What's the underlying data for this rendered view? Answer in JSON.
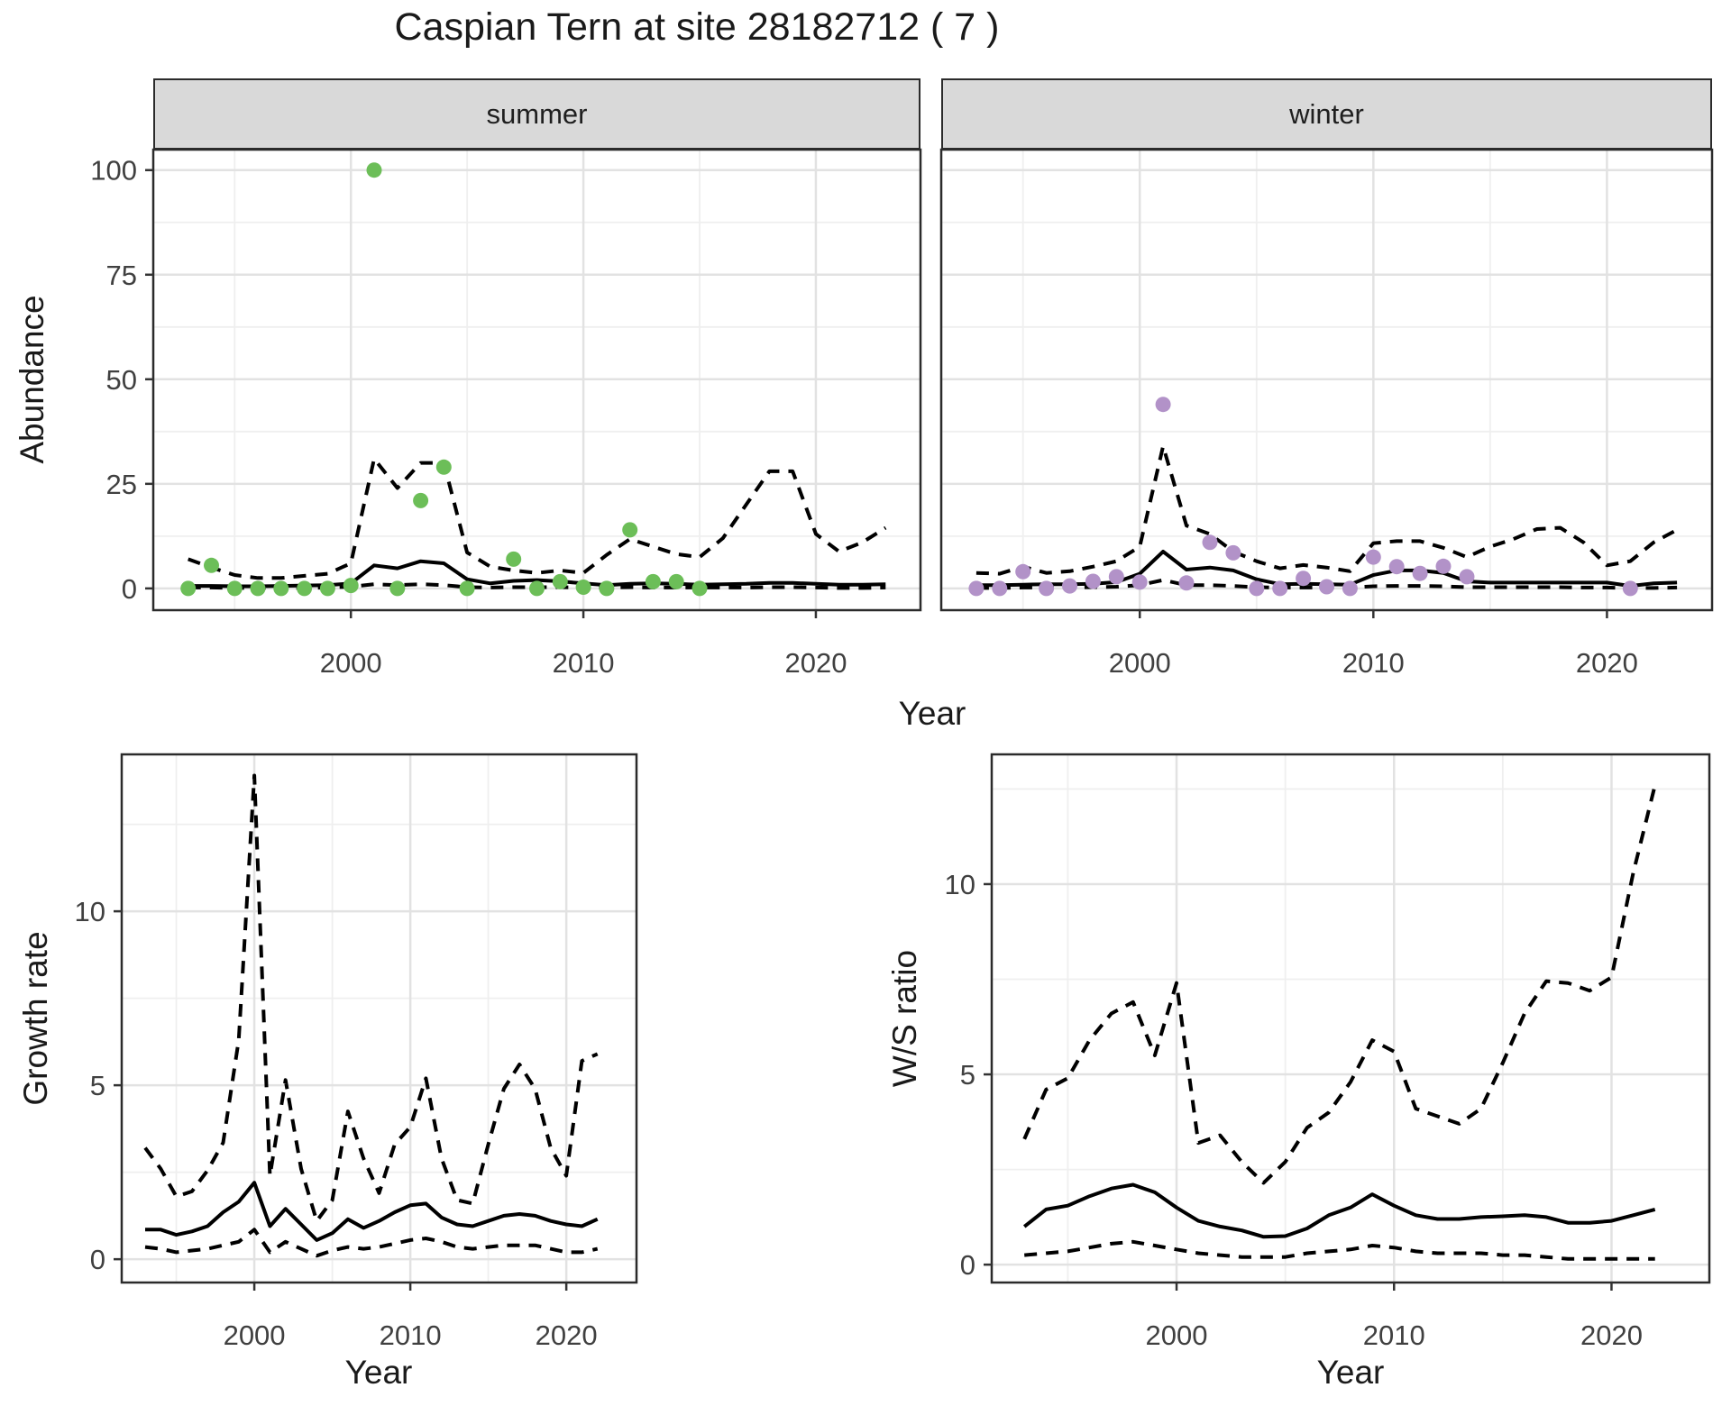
{
  "title": "Caspian Tern at site 28182712 ( 7 )",
  "colors": {
    "summer_point": "#6CBE58",
    "winter_point": "#B292C8",
    "line": "#000000",
    "strip_bg": "#D9D9D9",
    "panel_border": "#2B2B2B",
    "grid_major": "#E2E2E2",
    "grid_minor": "#EFEFEF",
    "axis_text": "#404040"
  },
  "chart_data": [
    {
      "type": "line",
      "panel": "abundance-summer",
      "facet_label": "summer",
      "xlabel": "Year",
      "ylabel": "Abundance",
      "x_ticks": [
        2000,
        2010,
        2020
      ],
      "x_minor_ticks": [
        1995,
        2005,
        2015
      ],
      "y_ticks": [
        0,
        25,
        50,
        75,
        100
      ],
      "y_minor_ticks": [
        12.5,
        37.5,
        62.5,
        87.5
      ],
      "x_domain": [
        1991.5,
        2024.5
      ],
      "y_domain": [
        -5.2,
        104.9
      ],
      "years": [
        1993,
        1994,
        1995,
        1996,
        1997,
        1998,
        1999,
        2000,
        2001,
        2002,
        2003,
        2004,
        2005,
        2006,
        2007,
        2008,
        2009,
        2010,
        2011,
        2012,
        2013,
        2014,
        2015,
        2016,
        2017,
        2018,
        2019,
        2020,
        2021,
        2022,
        2023
      ],
      "series": [
        {
          "name": "median",
          "style": "solid",
          "values": [
            0.6,
            0.6,
            0.5,
            0.5,
            0.6,
            0.7,
            0.8,
            1.2,
            5.5,
            4.8,
            6.5,
            6.0,
            2.2,
            1.2,
            1.8,
            2.0,
            1.7,
            1.2,
            0.8,
            1.1,
            1.2,
            1.1,
            0.9,
            1.0,
            1.1,
            1.3,
            1.3,
            1.1,
            0.9,
            0.9,
            1.0
          ]
        },
        {
          "name": "upper_ci",
          "style": "dashed",
          "values": [
            7,
            5,
            3.2,
            2.5,
            2.5,
            3,
            3.5,
            6,
            31,
            24,
            30,
            30,
            8.6,
            5.2,
            4.3,
            3.7,
            4.3,
            3.7,
            8,
            11.8,
            10,
            8.2,
            7.5,
            12,
            20,
            28,
            28,
            13,
            8.8,
            11,
            14.5
          ]
        },
        {
          "name": "lower_ci",
          "style": "dashed",
          "values": [
            0.2,
            0.2,
            0.1,
            0.1,
            0.1,
            0.1,
            0.2,
            0.4,
            1.0,
            0.8,
            1.0,
            0.8,
            0.3,
            0.2,
            0.3,
            0.3,
            0.3,
            0.2,
            0.2,
            0.3,
            0.2,
            0.2,
            0.2,
            0.2,
            0.2,
            0.3,
            0.3,
            0.2,
            0.1,
            0.1,
            0.2
          ]
        }
      ],
      "points": {
        "name": "observed-abundance-summer",
        "color": "#6CBE58",
        "data": [
          [
            1993,
            0
          ],
          [
            1994,
            5.5
          ],
          [
            1995,
            0
          ],
          [
            1996,
            0
          ],
          [
            1997,
            0
          ],
          [
            1998,
            0
          ],
          [
            1999,
            0
          ],
          [
            2000,
            0.7
          ],
          [
            2001,
            100
          ],
          [
            2002,
            0
          ],
          [
            2003,
            21
          ],
          [
            2004,
            29
          ],
          [
            2005,
            0
          ],
          [
            2007,
            7
          ],
          [
            2008,
            0
          ],
          [
            2009,
            1.6
          ],
          [
            2010,
            0.3
          ],
          [
            2011,
            0
          ],
          [
            2012,
            14
          ],
          [
            2013,
            1.6
          ],
          [
            2014,
            1.6
          ],
          [
            2015,
            0
          ]
        ]
      }
    },
    {
      "type": "line",
      "panel": "abundance-winter",
      "facet_label": "winter",
      "xlabel": "Year",
      "ylabel": "Abundance",
      "x_ticks": [
        2000,
        2010,
        2020
      ],
      "x_minor_ticks": [
        1995,
        2005,
        2015
      ],
      "y_ticks": [
        0,
        25,
        50,
        75,
        100
      ],
      "y_minor_ticks": [
        12.5,
        37.5,
        62.5,
        87.5
      ],
      "x_domain": [
        1991.5,
        2024.5
      ],
      "y_domain": [
        -5.2,
        104.9
      ],
      "years": [
        1993,
        1994,
        1995,
        1996,
        1997,
        1998,
        1999,
        2000,
        2001,
        2002,
        2003,
        2004,
        2005,
        2006,
        2007,
        2008,
        2009,
        2010,
        2011,
        2012,
        2013,
        2014,
        2015,
        2016,
        2017,
        2018,
        2019,
        2020,
        2021,
        2022,
        2023
      ],
      "series": [
        {
          "name": "median",
          "style": "solid",
          "values": [
            0.8,
            0.8,
            0.9,
            1.0,
            1.0,
            1.1,
            1.5,
            3.5,
            8.8,
            4.5,
            5.0,
            4.3,
            2.2,
            1.0,
            1.1,
            1.0,
            0.9,
            3.2,
            4.3,
            4.3,
            3.7,
            1.7,
            1.4,
            1.4,
            1.4,
            1.4,
            1.4,
            1.4,
            0.6,
            1.2,
            1.4
          ]
        },
        {
          "name": "upper_ci",
          "style": "dashed",
          "values": [
            3.7,
            3.5,
            5.2,
            3.7,
            4.1,
            5.2,
            6.5,
            10,
            34,
            15,
            13,
            8.8,
            6.5,
            4.8,
            5.6,
            5,
            4.1,
            10.8,
            11.3,
            11.3,
            9.7,
            7.5,
            10,
            11.8,
            14.2,
            14.5,
            11,
            5.5,
            6.5,
            11,
            14
          ]
        },
        {
          "name": "lower_ci",
          "style": "dashed",
          "values": [
            0.1,
            0.1,
            0.2,
            0.2,
            0.2,
            0.3,
            0.4,
            0.8,
            2.0,
            0.8,
            0.8,
            0.6,
            0.3,
            0.2,
            0.2,
            0.2,
            0.2,
            0.5,
            0.6,
            0.6,
            0.5,
            0.3,
            0.3,
            0.3,
            0.3,
            0.3,
            0.2,
            0.2,
            0.1,
            0.1,
            0.2
          ]
        }
      ],
      "points": {
        "name": "observed-abundance-winter",
        "color": "#B292C8",
        "data": [
          [
            1993,
            0
          ],
          [
            1994,
            0
          ],
          [
            1995,
            4
          ],
          [
            1996,
            0
          ],
          [
            1997,
            0.6
          ],
          [
            1998,
            1.7
          ],
          [
            1999,
            2.8
          ],
          [
            2000,
            1.5
          ],
          [
            2001,
            44
          ],
          [
            2002,
            1.3
          ],
          [
            2003,
            11
          ],
          [
            2004,
            8.5
          ],
          [
            2005,
            0
          ],
          [
            2006,
            0
          ],
          [
            2007,
            2.4
          ],
          [
            2008,
            0.4
          ],
          [
            2009,
            0
          ],
          [
            2010,
            7.5
          ],
          [
            2011,
            5.2
          ],
          [
            2012,
            3.6
          ],
          [
            2013,
            5.3
          ],
          [
            2014,
            2.8
          ],
          [
            2021,
            0
          ]
        ]
      }
    },
    {
      "type": "line",
      "panel": "growth-rate",
      "facet_label": "",
      "xlabel": "Year",
      "ylabel": "Growth rate",
      "x_ticks": [
        2000,
        2010,
        2020
      ],
      "x_minor_ticks": [
        1995,
        2005,
        2015
      ],
      "y_ticks": [
        0,
        5,
        10
      ],
      "y_minor_ticks": [
        2.5,
        7.5,
        12.5
      ],
      "x_domain": [
        1991.5,
        2024.5
      ],
      "y_domain": [
        -0.67,
        14.51
      ],
      "years": [
        1993,
        1994,
        1995,
        1996,
        1997,
        1998,
        1999,
        2000,
        2001,
        2002,
        2003,
        2004,
        2005,
        2006,
        2007,
        2008,
        2009,
        2010,
        2011,
        2012,
        2013,
        2014,
        2015,
        2016,
        2017,
        2018,
        2019,
        2020,
        2021,
        2022
      ],
      "series": [
        {
          "name": "median",
          "style": "solid",
          "values": [
            0.85,
            0.85,
            0.7,
            0.8,
            0.95,
            1.35,
            1.65,
            2.2,
            0.95,
            1.45,
            1.0,
            0.55,
            0.75,
            1.15,
            0.9,
            1.1,
            1.35,
            1.55,
            1.6,
            1.2,
            1.0,
            0.95,
            1.1,
            1.25,
            1.3,
            1.25,
            1.1,
            1.0,
            0.95,
            1.15
          ]
        },
        {
          "name": "upper_ci",
          "style": "dashed",
          "values": [
            3.2,
            2.6,
            1.8,
            1.95,
            2.55,
            3.35,
            6.3,
            13.9,
            2.4,
            5.15,
            2.6,
            1.1,
            1.7,
            4.25,
            2.9,
            1.9,
            3.3,
            3.8,
            5.2,
            2.9,
            1.7,
            1.6,
            3.3,
            4.9,
            5.6,
            4.9,
            3.2,
            2.4,
            5.7,
            5.9
          ]
        },
        {
          "name": "lower_ci",
          "style": "dashed",
          "values": [
            0.35,
            0.3,
            0.2,
            0.25,
            0.3,
            0.4,
            0.5,
            0.85,
            0.2,
            0.5,
            0.3,
            0.1,
            0.25,
            0.35,
            0.3,
            0.35,
            0.45,
            0.55,
            0.6,
            0.5,
            0.35,
            0.3,
            0.35,
            0.4,
            0.4,
            0.4,
            0.3,
            0.2,
            0.2,
            0.3
          ]
        }
      ],
      "points": null
    },
    {
      "type": "line",
      "panel": "ws-ratio",
      "facet_label": "",
      "xlabel": "Year",
      "ylabel": "W/S ratio",
      "x_ticks": [
        2000,
        2010,
        2020
      ],
      "x_minor_ticks": [
        1995,
        2005,
        2015
      ],
      "y_ticks": [
        0,
        5,
        10
      ],
      "y_minor_ticks": [
        2.5,
        7.5,
        12.5
      ],
      "x_domain": [
        1991.5,
        2024.5
      ],
      "y_domain": [
        -0.47,
        13.41
      ],
      "years": [
        1993,
        1994,
        1995,
        1996,
        1997,
        1998,
        1999,
        2000,
        2001,
        2002,
        2003,
        2004,
        2005,
        2006,
        2007,
        2008,
        2009,
        2010,
        2011,
        2012,
        2013,
        2014,
        2015,
        2016,
        2017,
        2018,
        2019,
        2020,
        2021,
        2022
      ],
      "series": [
        {
          "name": "median",
          "style": "solid",
          "values": [
            1.0,
            1.45,
            1.55,
            1.8,
            2.0,
            2.1,
            1.9,
            1.5,
            1.15,
            1.0,
            0.9,
            0.73,
            0.75,
            0.95,
            1.3,
            1.5,
            1.85,
            1.55,
            1.3,
            1.2,
            1.2,
            1.25,
            1.27,
            1.3,
            1.25,
            1.1,
            1.1,
            1.15,
            1.3,
            1.45
          ]
        },
        {
          "name": "upper_ci",
          "style": "dashed",
          "values": [
            3.3,
            4.6,
            4.9,
            5.9,
            6.6,
            6.9,
            5.5,
            7.4,
            3.2,
            3.4,
            2.7,
            2.15,
            2.7,
            3.6,
            4.0,
            4.8,
            5.9,
            5.6,
            4.1,
            3.9,
            3.7,
            4.1,
            5.3,
            6.6,
            7.45,
            7.4,
            7.2,
            7.55,
            10.3,
            12.6
          ]
        },
        {
          "name": "lower_ci",
          "style": "dashed",
          "values": [
            0.25,
            0.3,
            0.35,
            0.45,
            0.55,
            0.6,
            0.5,
            0.4,
            0.3,
            0.25,
            0.2,
            0.2,
            0.2,
            0.3,
            0.35,
            0.4,
            0.5,
            0.45,
            0.35,
            0.3,
            0.3,
            0.3,
            0.25,
            0.25,
            0.2,
            0.15,
            0.15,
            0.15,
            0.15,
            0.15
          ]
        }
      ],
      "points": null
    }
  ]
}
